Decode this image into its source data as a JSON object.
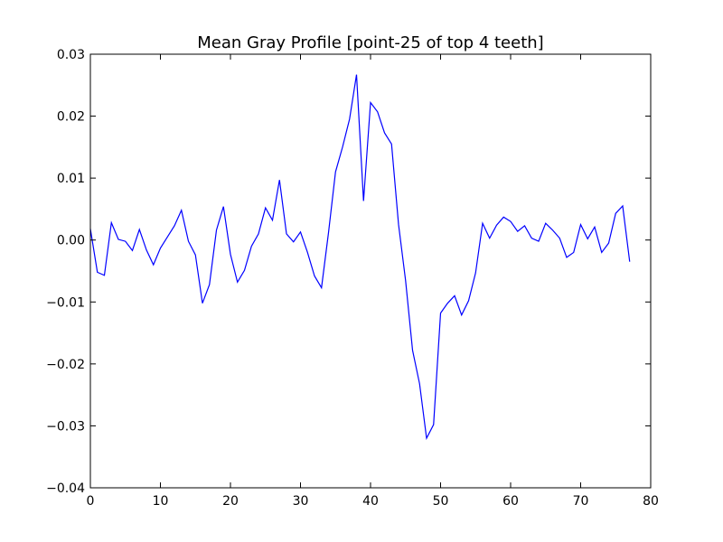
{
  "chart_data": {
    "type": "line",
    "title": "Mean Gray Profile [point-25 of top 4 teeth]",
    "xlabel": "",
    "ylabel": "",
    "xlim": [
      0,
      80
    ],
    "ylim": [
      -0.04,
      0.03
    ],
    "x_ticks": [
      0,
      10,
      20,
      30,
      40,
      50,
      60,
      70,
      80
    ],
    "x_tick_labels": [
      "0",
      "10",
      "20",
      "30",
      "40",
      "50",
      "60",
      "70",
      "80"
    ],
    "y_ticks": [
      -0.04,
      -0.03,
      -0.02,
      -0.01,
      0.0,
      0.01,
      0.02,
      0.03
    ],
    "y_tick_labels": [
      "−0.04",
      "−0.03",
      "−0.02",
      "−0.01",
      "0.00",
      "0.01",
      "0.02",
      "0.03"
    ],
    "grid": false,
    "legend": "none",
    "series": [
      {
        "color": "#0000ff",
        "x": [
          0,
          1,
          2,
          3,
          4,
          5,
          6,
          7,
          8,
          9,
          10,
          11,
          12,
          13,
          14,
          15,
          16,
          17,
          18,
          19,
          20,
          21,
          22,
          23,
          24,
          25,
          26,
          27,
          28,
          29,
          30,
          31,
          32,
          33,
          34,
          35,
          36,
          37,
          38,
          39,
          40,
          41,
          42,
          43,
          44,
          45,
          46,
          47,
          48,
          49,
          50,
          51,
          52,
          53,
          54,
          55,
          56,
          57,
          58,
          59,
          60,
          61,
          62,
          63,
          64,
          65,
          66,
          67,
          68,
          69,
          70,
          71,
          72,
          73,
          74,
          75,
          76,
          77
        ],
        "y": [
          0.0018,
          -0.0052,
          -0.0057,
          0.0028,
          0.0001,
          -0.0002,
          -0.0017,
          0.0017,
          -0.0016,
          -0.004,
          -0.0013,
          0.0005,
          0.0023,
          0.0048,
          -0.0002,
          -0.0024,
          -0.0102,
          -0.0072,
          0.0016,
          0.0054,
          -0.0023,
          -0.0068,
          -0.0049,
          -0.001,
          0.001,
          0.0052,
          0.0032,
          0.0097,
          0.001,
          -0.0003,
          0.0013,
          -0.002,
          -0.0058,
          -0.0077,
          0.0012,
          0.011,
          0.015,
          0.0195,
          0.0267,
          0.0063,
          0.0222,
          0.0207,
          0.0173,
          0.0155,
          0.0025,
          -0.0065,
          -0.0178,
          -0.0232,
          -0.032,
          -0.0298,
          -0.0118,
          -0.0102,
          -0.009,
          -0.0121,
          -0.0098,
          -0.0053,
          0.0027,
          0.0003,
          0.0024,
          0.0037,
          0.003,
          0.0014,
          0.0023,
          0.0003,
          -0.0002,
          0.0027,
          0.0016,
          0.0003,
          -0.0028,
          -0.002,
          0.0025,
          0.0002,
          0.0021,
          -0.002,
          -0.0005,
          0.0043,
          0.0055,
          -0.0035
        ]
      }
    ]
  }
}
